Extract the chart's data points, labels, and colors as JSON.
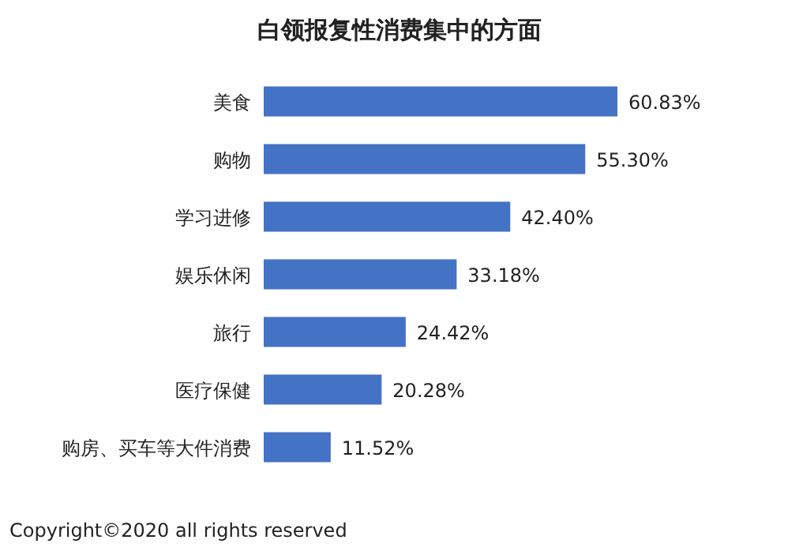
{
  "chart_data": {
    "type": "bar",
    "orientation": "horizontal",
    "title": "白领报复性消费集中的方面",
    "categories": [
      "美食",
      "购物",
      "学习进修",
      "娱乐休闲",
      "旅行",
      "医疗保健",
      "购房、买车等大件消费"
    ],
    "values": [
      60.83,
      55.3,
      42.4,
      33.18,
      24.42,
      20.28,
      11.52
    ],
    "value_labels": [
      "60.83%",
      "55.30%",
      "42.40%",
      "33.18%",
      "24.42%",
      "20.28%",
      "11.52%"
    ],
    "color": "#4472c4",
    "annotations": [
      "Copyright©2020 all rights reserved"
    ]
  }
}
